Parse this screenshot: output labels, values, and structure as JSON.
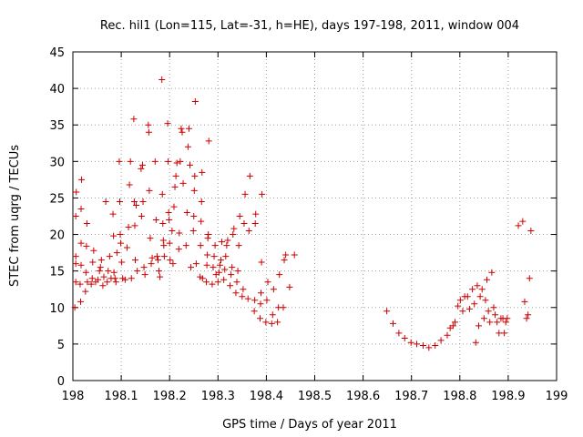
{
  "chart_data": {
    "type": "scatter",
    "title": "Rec. hil1 (Lon=115, Lat=-31, h=HE), days 197-198, 2011, window 004",
    "xlabel": "GPS time / Days of year 2011",
    "ylabel": "STEC from uqrg / TECUs",
    "xlim": [
      198,
      199
    ],
    "ylim": [
      0,
      45
    ],
    "xticks": [
      198,
      198.1,
      198.2,
      198.3,
      198.4,
      198.5,
      198.6,
      198.7,
      198.8,
      198.9,
      199
    ],
    "xtick_labels": [
      "198",
      "198.1",
      "198.2",
      "198.3",
      "198.4",
      "198.5",
      "198.6",
      "198.7",
      "198.8",
      "198.9",
      "199"
    ],
    "yticks": [
      0,
      5,
      10,
      15,
      20,
      25,
      30,
      35,
      40,
      45
    ],
    "ytick_labels": [
      "0",
      "5",
      "10",
      "15",
      "20",
      "25",
      "30",
      "35",
      "40",
      "45"
    ],
    "grid": true,
    "marker": "+",
    "color": "#cc0000",
    "points": [
      [
        198.004,
        10.0
      ],
      [
        198.006,
        13.5
      ],
      [
        198.006,
        16.0
      ],
      [
        198.006,
        17.0
      ],
      [
        198.006,
        22.5
      ],
      [
        198.007,
        25.8
      ],
      [
        198.015,
        13.2
      ],
      [
        198.016,
        10.8
      ],
      [
        198.017,
        15.8
      ],
      [
        198.017,
        18.8
      ],
      [
        198.017,
        23.5
      ],
      [
        198.018,
        27.5
      ],
      [
        198.026,
        12.2
      ],
      [
        198.027,
        14.8
      ],
      [
        198.028,
        18.4
      ],
      [
        198.029,
        21.5
      ],
      [
        198.03,
        13.5
      ],
      [
        198.038,
        13.2
      ],
      [
        198.04,
        14.0
      ],
      [
        198.041,
        16.2
      ],
      [
        198.043,
        17.8
      ],
      [
        198.047,
        13.5
      ],
      [
        198.052,
        13.8
      ],
      [
        198.055,
        15.0
      ],
      [
        198.057,
        15.5
      ],
      [
        198.059,
        16.5
      ],
      [
        198.062,
        13.0
      ],
      [
        198.064,
        14.2
      ],
      [
        198.068,
        24.5
      ],
      [
        198.071,
        13.5
      ],
      [
        198.073,
        15.0
      ],
      [
        198.076,
        17.0
      ],
      [
        198.079,
        14.0
      ],
      [
        198.083,
        22.8
      ],
      [
        198.084,
        19.8
      ],
      [
        198.085,
        14.8
      ],
      [
        198.087,
        14.0
      ],
      [
        198.089,
        13.5
      ],
      [
        198.091,
        17.5
      ],
      [
        198.096,
        30.0
      ],
      [
        198.097,
        24.5
      ],
      [
        198.098,
        20.0
      ],
      [
        198.099,
        18.8
      ],
      [
        198.101,
        16.2
      ],
      [
        198.103,
        14.0
      ],
      [
        198.108,
        13.8
      ],
      [
        198.112,
        18.2
      ],
      [
        198.115,
        21.0
      ],
      [
        198.117,
        26.8
      ],
      [
        198.119,
        30.0
      ],
      [
        198.121,
        14.0
      ],
      [
        198.126,
        35.8
      ],
      [
        198.127,
        24.5
      ],
      [
        198.128,
        21.2
      ],
      [
        198.129,
        16.5
      ],
      [
        198.131,
        24.0
      ],
      [
        198.133,
        15.0
      ],
      [
        198.141,
        29.0
      ],
      [
        198.142,
        22.5
      ],
      [
        198.144,
        29.5
      ],
      [
        198.145,
        24.5
      ],
      [
        198.147,
        15.5
      ],
      [
        198.149,
        14.5
      ],
      [
        198.156,
        35.0
      ],
      [
        198.157,
        34.0
      ],
      [
        198.158,
        26.0
      ],
      [
        198.16,
        19.5
      ],
      [
        198.162,
        16.0
      ],
      [
        198.164,
        16.8
      ],
      [
        198.17,
        30.0
      ],
      [
        198.172,
        22.0
      ],
      [
        198.174,
        17.0
      ],
      [
        198.176,
        16.5
      ],
      [
        198.178,
        15.0
      ],
      [
        198.18,
        14.2
      ],
      [
        198.184,
        41.2
      ],
      [
        198.185,
        25.5
      ],
      [
        198.186,
        21.5
      ],
      [
        198.187,
        19.2
      ],
      [
        198.188,
        18.5
      ],
      [
        198.189,
        17.0
      ],
      [
        198.196,
        35.2
      ],
      [
        198.197,
        30.0
      ],
      [
        198.198,
        23.0
      ],
      [
        198.199,
        22.0
      ],
      [
        198.2,
        18.8
      ],
      [
        198.201,
        16.5
      ],
      [
        198.205,
        20.5
      ],
      [
        198.207,
        16.0
      ],
      [
        198.209,
        23.8
      ],
      [
        198.211,
        26.5
      ],
      [
        198.213,
        28.0
      ],
      [
        198.215,
        29.8
      ],
      [
        198.219,
        18.0
      ],
      [
        198.22,
        20.2
      ],
      [
        198.222,
        30.0
      ],
      [
        198.224,
        34.5
      ],
      [
        198.226,
        34.0
      ],
      [
        198.228,
        27.0
      ],
      [
        198.234,
        18.5
      ],
      [
        198.236,
        23.0
      ],
      [
        198.238,
        32.0
      ],
      [
        198.24,
        34.5
      ],
      [
        198.242,
        29.5
      ],
      [
        198.244,
        15.5
      ],
      [
        198.249,
        20.5
      ],
      [
        198.25,
        22.5
      ],
      [
        198.251,
        26.0
      ],
      [
        198.252,
        28.0
      ],
      [
        198.253,
        38.2
      ],
      [
        198.255,
        16.0
      ],
      [
        198.263,
        14.2
      ],
      [
        198.264,
        18.5
      ],
      [
        198.265,
        21.8
      ],
      [
        198.266,
        24.5
      ],
      [
        198.267,
        28.5
      ],
      [
        198.268,
        14.0
      ],
      [
        198.276,
        13.5
      ],
      [
        198.277,
        15.8
      ],
      [
        198.278,
        17.2
      ],
      [
        198.279,
        19.5
      ],
      [
        198.28,
        20.0
      ],
      [
        198.281,
        32.8
      ],
      [
        198.288,
        13.2
      ],
      [
        198.29,
        15.5
      ],
      [
        198.292,
        17.0
      ],
      [
        198.294,
        18.5
      ],
      [
        198.296,
        14.5
      ],
      [
        198.3,
        13.5
      ],
      [
        198.302,
        14.8
      ],
      [
        198.304,
        15.8
      ],
      [
        198.306,
        16.5
      ],
      [
        198.308,
        19.0
      ],
      [
        198.312,
        13.8
      ],
      [
        198.314,
        15.2
      ],
      [
        198.316,
        17.0
      ],
      [
        198.318,
        18.5
      ],
      [
        198.32,
        19.2
      ],
      [
        198.325,
        13.0
      ],
      [
        198.327,
        14.5
      ],
      [
        198.329,
        15.5
      ],
      [
        198.331,
        20.0
      ],
      [
        198.333,
        20.8
      ],
      [
        198.337,
        12.0
      ],
      [
        198.339,
        13.5
      ],
      [
        198.341,
        15.0
      ],
      [
        198.343,
        18.5
      ],
      [
        198.345,
        22.5
      ],
      [
        198.35,
        11.5
      ],
      [
        198.352,
        12.5
      ],
      [
        198.354,
        21.5
      ],
      [
        198.356,
        25.5
      ],
      [
        198.362,
        11.2
      ],
      [
        198.364,
        20.5
      ],
      [
        198.366,
        28.0
      ],
      [
        198.375,
        9.5
      ],
      [
        198.376,
        11.0
      ],
      [
        198.377,
        21.5
      ],
      [
        198.378,
        22.8
      ],
      [
        198.387,
        8.5
      ],
      [
        198.388,
        10.5
      ],
      [
        198.389,
        12.0
      ],
      [
        198.39,
        16.2
      ],
      [
        198.391,
        25.5
      ],
      [
        198.399,
        8.0
      ],
      [
        198.401,
        11.0
      ],
      [
        198.403,
        13.5
      ],
      [
        198.411,
        7.8
      ],
      [
        198.413,
        9.0
      ],
      [
        198.415,
        12.5
      ],
      [
        198.423,
        8.0
      ],
      [
        198.425,
        10.0
      ],
      [
        198.427,
        14.5
      ],
      [
        198.435,
        10.0
      ],
      [
        198.437,
        16.5
      ],
      [
        198.44,
        17.2
      ],
      [
        198.448,
        12.8
      ],
      [
        198.458,
        17.2
      ],
      [
        198.649,
        9.5
      ],
      [
        198.662,
        7.8
      ],
      [
        198.674,
        6.5
      ],
      [
        198.686,
        5.8
      ],
      [
        198.699,
        5.2
      ],
      [
        198.711,
        5.0
      ],
      [
        198.724,
        4.8
      ],
      [
        198.736,
        4.5
      ],
      [
        198.749,
        4.8
      ],
      [
        198.761,
        5.5
      ],
      [
        198.774,
        6.2
      ],
      [
        198.78,
        7.2
      ],
      [
        198.786,
        7.5
      ],
      [
        198.79,
        8.0
      ],
      [
        198.796,
        10.2
      ],
      [
        198.801,
        11.0
      ],
      [
        198.806,
        9.5
      ],
      [
        198.81,
        11.5
      ],
      [
        198.816,
        11.5
      ],
      [
        198.82,
        9.8
      ],
      [
        198.826,
        12.5
      ],
      [
        198.83,
        10.5
      ],
      [
        198.833,
        5.2
      ],
      [
        198.836,
        13.0
      ],
      [
        198.839,
        7.5
      ],
      [
        198.842,
        11.5
      ],
      [
        198.846,
        12.5
      ],
      [
        198.85,
        8.5
      ],
      [
        198.853,
        11.0
      ],
      [
        198.856,
        13.8
      ],
      [
        198.859,
        9.5
      ],
      [
        198.862,
        8.0
      ],
      [
        198.866,
        14.8
      ],
      [
        198.87,
        10.0
      ],
      [
        198.873,
        9.0
      ],
      [
        198.877,
        8.0
      ],
      [
        198.881,
        6.5
      ],
      [
        198.885,
        8.5
      ],
      [
        198.889,
        8.5
      ],
      [
        198.892,
        6.5
      ],
      [
        198.895,
        8.0
      ],
      [
        198.898,
        8.5
      ],
      [
        198.921,
        21.2
      ],
      [
        198.93,
        21.8
      ],
      [
        198.934,
        10.8
      ],
      [
        198.938,
        8.5
      ],
      [
        198.941,
        9.0
      ],
      [
        198.944,
        14.0
      ],
      [
        198.947,
        20.5
      ]
    ]
  }
}
